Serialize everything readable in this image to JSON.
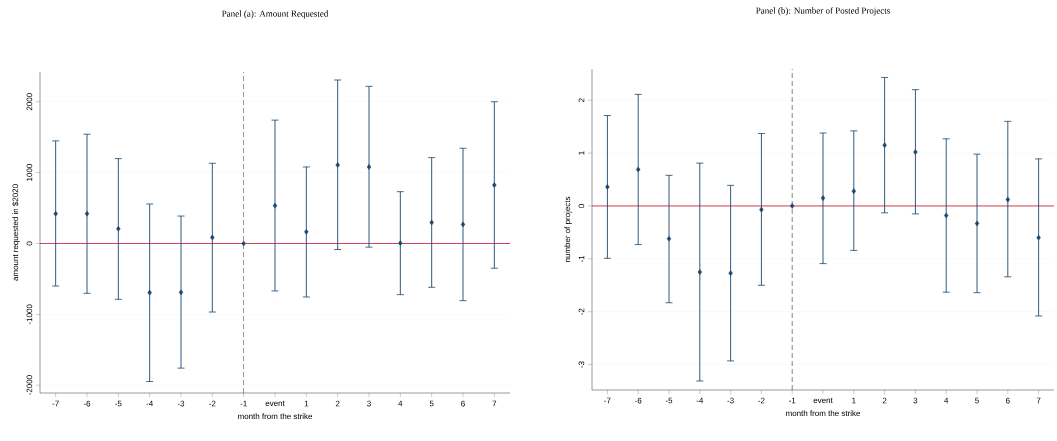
{
  "chart_data": [
    {
      "type": "scatter",
      "title": "Panel (a): Amount Requested",
      "xlabel": "month from the strike",
      "ylabel": "amount requested in $2020",
      "categories": [
        "-7",
        "-6",
        "-5",
        "-4",
        "-3",
        "-2",
        "-1",
        "event",
        "1",
        "2",
        "3",
        "4",
        "5",
        "6",
        "7"
      ],
      "series": [
        {
          "color": "#1a476f",
          "values": [
            420,
            420,
            208,
            -693,
            -689,
            85,
            0,
            533,
            165,
            1108,
            1080,
            5,
            297,
            269,
            825
          ],
          "errors": [
            [
              -600,
              1448
            ],
            [
              -703,
              1542
            ],
            [
              -788,
              1198
            ],
            [
              -1948,
              557
            ],
            [
              -1759,
              387
            ],
            [
              -967,
              1132
            ],
            null,
            [
              -670,
              1741
            ],
            [
              -755,
              1080
            ],
            [
              -85,
              2307
            ],
            [
              -52,
              2217
            ],
            [
              -722,
              731
            ],
            [
              -618,
              1212
            ],
            [
              -807,
              1344
            ],
            [
              -349,
              2000
            ]
          ]
        }
      ],
      "ylim": [
        -2110,
        2420
      ],
      "yticks": [
        -2000,
        -1000,
        0,
        1000,
        2000
      ],
      "grid": "y",
      "marker": "diamond",
      "ref_lines": [
        {
          "axis": "y",
          "value": 0,
          "color": "#c8102e",
          "line_style": "solid"
        },
        {
          "axis": "x",
          "value": "-1",
          "color": "#333333",
          "line_style": "dashed"
        }
      ]
    },
    {
      "type": "scatter",
      "title": "Panel (b): Number of Posted Projects",
      "xlabel": "month from the strike",
      "ylabel": "number of projects",
      "categories": [
        "-7",
        "-6",
        "-5",
        "-4",
        "-3",
        "-2",
        "-1",
        "event",
        "1",
        "2",
        "3",
        "4",
        "5",
        "6",
        "7"
      ],
      "series": [
        {
          "color": "#1a476f",
          "values": [
            0.36,
            0.69,
            -0.62,
            -1.25,
            -1.27,
            -0.07,
            0,
            0.15,
            0.28,
            1.15,
            1.02,
            -0.18,
            -0.33,
            0.12,
            -0.6
          ],
          "errors": [
            [
              -0.99,
              1.71
            ],
            [
              -0.73,
              2.11
            ],
            [
              -1.83,
              0.58
            ],
            [
              -3.31,
              0.81
            ],
            [
              -2.93,
              0.39
            ],
            [
              -1.5,
              1.37
            ],
            null,
            [
              -1.09,
              1.38
            ],
            [
              -0.84,
              1.42
            ],
            [
              -0.13,
              2.43
            ],
            [
              -0.15,
              2.2
            ],
            [
              -1.63,
              1.27
            ],
            [
              -1.64,
              0.98
            ],
            [
              -1.34,
              1.6
            ],
            [
              -2.08,
              0.89
            ]
          ]
        }
      ],
      "ylim": [
        -3.48,
        2.59
      ],
      "yticks": [
        -3,
        -2,
        -1,
        0,
        1,
        2
      ],
      "grid": "y",
      "marker": "diamond",
      "ref_lines": [
        {
          "axis": "y",
          "value": 0,
          "color": "#c8102e",
          "line_style": "solid"
        },
        {
          "axis": "x",
          "value": "-1",
          "color": "#333333",
          "line_style": "dashed"
        }
      ]
    }
  ]
}
